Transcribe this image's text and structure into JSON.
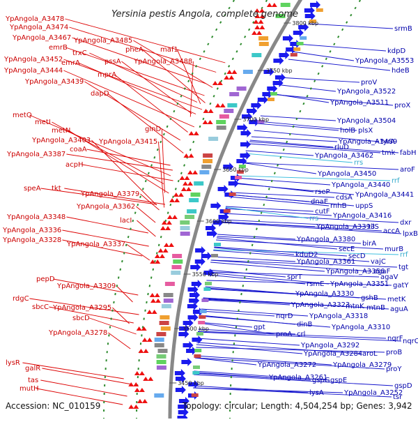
{
  "title": "Yersinia pestis Angola, complete genome",
  "footer": {
    "accession": "Accession: NC_010159",
    "topology": "Topology: circular; Length: 4,504,254 bp; Genes: 3,942"
  },
  "positions": [
    "3800 kbp",
    "3750 kbp",
    "3700 kbp",
    "3650 kbp",
    "3600 kbp",
    "3550 kbp",
    "3500 kbp",
    "3450 kbp"
  ],
  "left_labels": [
    "YpAngola_A3478",
    "YpAngola_A3474",
    "YpAngola_A3467",
    "YpAngola_A3485",
    "emrB",
    "trxC",
    "YpAngola_A3452",
    "emrA",
    "pssA",
    "pheA",
    "maf1",
    "YpAngola_A3488",
    "YpAngola_A3444",
    "mprA",
    "YpAngola_A3439",
    "dapD",
    "metQ",
    "metI",
    "metN",
    "glnD",
    "YpAngola_A3403",
    "YpAngola_A3415",
    "YpAngola_A3387",
    "coaA",
    "acpH",
    "YpAngola_A3379",
    "speA",
    "tkt",
    "YpAngola_A3362",
    "YpAngola_A3348",
    "lacI",
    "YpAngola_A3336",
    "YpAngola_A3328",
    "YpAngola_A3337",
    "pepD",
    "YpAngola_A3309",
    "rdgC",
    "sbcC",
    "YpAngola_A3295",
    "sbcD",
    "YpAngola_A3278",
    "lysR",
    "galR",
    "tas",
    "mutH"
  ],
  "right_labels": [
    "srmB",
    "kdpD",
    "YpAngola_A3553",
    "hdeB",
    "proV",
    "YpAngola_A3522",
    "YpAngola_A3511",
    "proX",
    "YpAngola_A3504",
    "holB",
    "plsX",
    "tyrA",
    "YpAngola_A3489",
    "rluD",
    "tmk",
    "fabH",
    "YpAngola_A3462",
    "aroF",
    "rrs",
    "YpAngola_A3450",
    "rrf",
    "YpAngola_A3440",
    "rseP",
    "YpAngola_A3441",
    "cdsA",
    "dnaE",
    "rnhB",
    "uppS",
    "cutF",
    "YpAngola_A3416",
    "dxr",
    "rrs",
    "YpAngola_A3393",
    "tilS",
    "accA",
    "lpxB",
    "YpAngola_A3380",
    "birA",
    "murB",
    "secE",
    "rrf",
    "kduD2",
    "secD",
    "vajC",
    "YpAngola_A3361",
    "tgt",
    "YpAngola_A3356",
    "agaF",
    "agaV",
    "sprT",
    "rsmE",
    "YpAngola_A3351",
    "gatY",
    "YpAngola_A3330",
    "gshB",
    "metK",
    "YpAngola_A3323",
    "mtnK",
    "mtnB",
    "aguA",
    "nqrD",
    "YpAngola_A3318",
    "dinB",
    "YpAngola_A3310",
    "gpt",
    "nqrF",
    "nqrC",
    "proA",
    "crl",
    "YpAngola_A3292",
    "YpAngola_A3284",
    "aroL",
    "proB",
    "YpAngola_A3272",
    "YpAngola_A3279",
    "proY",
    "YpAngola_A3261",
    "gspG",
    "gspE",
    "gspD",
    "YpAngola_A3252",
    "lysA",
    "tsr"
  ]
}
